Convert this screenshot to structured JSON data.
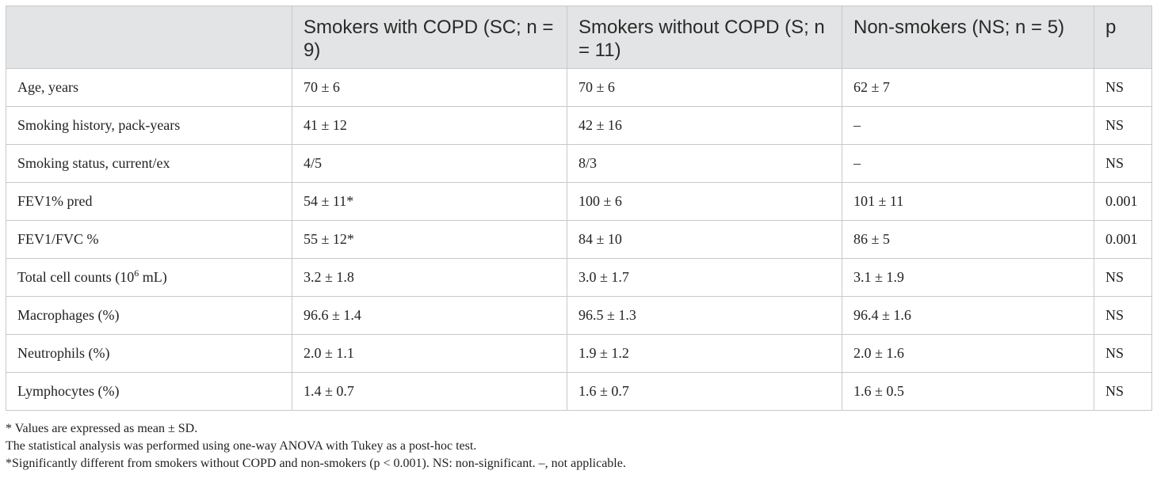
{
  "table": {
    "headers": [
      "",
      "Smokers with COPD (SC; n = 9)",
      "Smokers without COPD (S; n = 11)",
      "Non-smokers (NS; n = 5)",
      "p"
    ],
    "rows": [
      [
        "Age, years",
        "70 ± 6",
        "70 ± 6",
        "62 ± 7",
        "NS"
      ],
      [
        "Smoking history, pack-years",
        "41 ± 12",
        "42 ± 16",
        "–",
        "NS"
      ],
      [
        "Smoking status, current/ex",
        "4/5",
        "8/3",
        "–",
        "NS"
      ],
      [
        "FEV1% pred",
        "54 ± 11*",
        "100 ± 6",
        "101 ± 11",
        "0.001"
      ],
      [
        "FEV1/FVC %",
        "55 ± 12*",
        "84 ± 10",
        "86 ± 5",
        "0.001"
      ],
      [
        "Total cell counts (10",
        "3.2 ± 1.8",
        "3.0 ± 1.7",
        "3.1 ± 1.9",
        "NS"
      ],
      [
        "Macrophages (%)",
        "96.6 ± 1.4",
        "96.5 ± 1.3",
        "96.4 ± 1.6",
        "NS"
      ],
      [
        "Neutrophils (%)",
        "2.0 ± 1.1",
        "1.9 ± 1.2",
        "2.0 ± 1.6",
        "NS"
      ],
      [
        "Lymphocytes (%)",
        "1.4 ± 0.7",
        "1.6 ± 0.7",
        "1.6 ± 0.5",
        "NS"
      ]
    ],
    "cell_count_sup": "6",
    "cell_count_suffix": " mL)"
  },
  "notes": [
    "* Values are expressed as mean ± SD.",
    "The statistical analysis was performed using one-way ANOVA with Tukey as a post-hoc test.",
    "*Significantly different from smokers without COPD and non-smokers (p < 0.001). NS: non-significant. –, not applicable."
  ]
}
